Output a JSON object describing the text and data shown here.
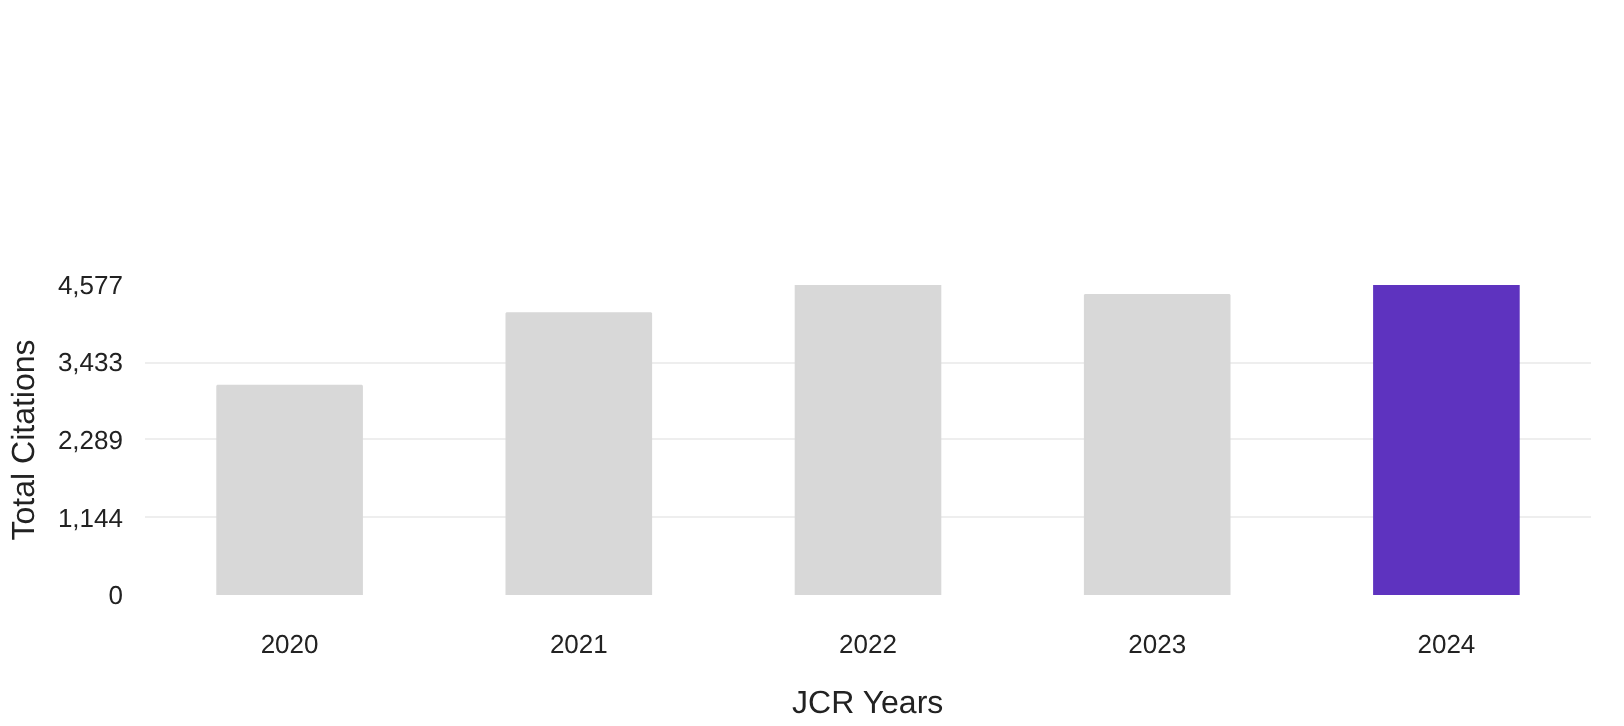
{
  "chart_data": {
    "type": "bar",
    "xlabel": "JCR Years",
    "ylabel": "Total Citations",
    "categories": [
      "2020",
      "2021",
      "2022",
      "2023",
      "2024"
    ],
    "values": [
      3090,
      4160,
      4577,
      4430,
      4577
    ],
    "colors": [
      "#d8d8d8",
      "#d8d8d8",
      "#d8d8d8",
      "#d8d8d8",
      "#5e33bf"
    ],
    "ylim": [
      0,
      4577
    ],
    "yticks": [
      0,
      {
        "value": 1144,
        "label": "1,144"
      },
      {
        "value": 2289,
        "label": "2,289"
      },
      {
        "value": 3433,
        "label": "3,433"
      },
      {
        "value": 4577,
        "label": "4,577"
      }
    ],
    "grid": "y"
  }
}
